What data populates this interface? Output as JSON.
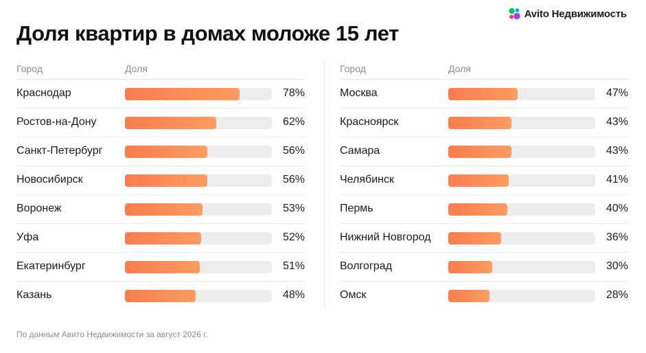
{
  "brand": {
    "name": "Avito Недвижимость",
    "logo_icon": "avito-dots-icon"
  },
  "title": "Доля квартир в домах моложе 15 лет",
  "headers": {
    "city": "Город",
    "share": "Доля"
  },
  "footnote": "По данным Авито Недвижимости за август 2026 г.",
  "colors": {
    "bar": "#ff8a55",
    "track": "#ededed",
    "text": "#1a1a1a",
    "muted": "#8c8c8c"
  },
  "chart_data": {
    "type": "bar",
    "title": "Доля квартир в домах моложе 15 лет",
    "unit": "%",
    "xlim": [
      0,
      100
    ],
    "tables": [
      {
        "rows": [
          {
            "city": "Краснодар",
            "value": 78,
            "label": "78%"
          },
          {
            "city": "Ростов-на-Дону",
            "value": 62,
            "label": "62%"
          },
          {
            "city": "Санкт-Петербург",
            "value": 56,
            "label": "56%"
          },
          {
            "city": "Новосибирск",
            "value": 56,
            "label": "56%"
          },
          {
            "city": "Воронеж",
            "value": 53,
            "label": "53%"
          },
          {
            "city": "Уфа",
            "value": 52,
            "label": "52%"
          },
          {
            "city": "Екатеринбург",
            "value": 51,
            "label": "51%"
          },
          {
            "city": "Казань",
            "value": 48,
            "label": "48%"
          }
        ]
      },
      {
        "rows": [
          {
            "city": "Москва",
            "value": 47,
            "label": "47%"
          },
          {
            "city": "Красноярск",
            "value": 43,
            "label": "43%"
          },
          {
            "city": "Самара",
            "value": 43,
            "label": "43%"
          },
          {
            "city": "Челябинск",
            "value": 41,
            "label": "41%"
          },
          {
            "city": "Пермь",
            "value": 40,
            "label": "40%"
          },
          {
            "city": "Нижний Новгород",
            "value": 36,
            "label": "36%"
          },
          {
            "city": "Волгоград",
            "value": 30,
            "label": "30%"
          },
          {
            "city": "Омск",
            "value": 28,
            "label": "28%"
          }
        ]
      }
    ]
  }
}
